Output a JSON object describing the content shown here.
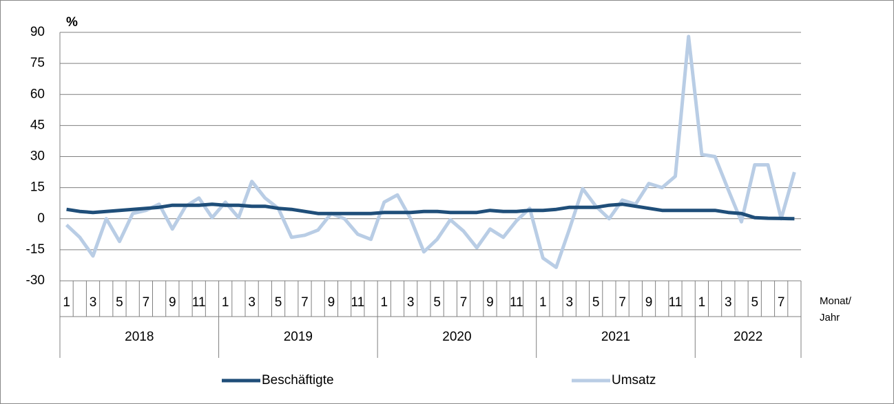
{
  "chart_data": {
    "type": "line",
    "y_label": "%",
    "x_label": [
      "Monat/",
      "Jahr"
    ],
    "categories": [
      "1",
      null,
      "3",
      null,
      "5",
      null,
      "7",
      null,
      "9",
      null,
      "11",
      null,
      "1",
      null,
      "3",
      null,
      "5",
      null,
      "7",
      null,
      "9",
      null,
      "11",
      null,
      "1",
      null,
      "3",
      null,
      "5",
      null,
      "7",
      null,
      "9",
      null,
      "11",
      null,
      "1",
      null,
      "3",
      null,
      "5",
      null,
      "7",
      null,
      "9",
      null,
      "11",
      null,
      "1",
      null,
      "3",
      null,
      "5",
      null,
      "7",
      null
    ],
    "years": [
      {
        "label": "2018",
        "months": 12
      },
      {
        "label": "2019",
        "months": 12
      },
      {
        "label": "2020",
        "months": 12
      },
      {
        "label": "2021",
        "months": 12
      },
      {
        "label": "2022",
        "months": 8
      }
    ],
    "series": [
      {
        "name": "Beschäftigte",
        "color": "#1f4e79",
        "width": 5,
        "values": [
          4.5,
          3.5,
          3,
          3.5,
          4,
          4.5,
          5,
          5.5,
          6.5,
          6.5,
          6.5,
          7,
          6.5,
          6.5,
          6,
          6,
          5,
          4.5,
          3.5,
          2.5,
          2.5,
          2.5,
          2.5,
          2.5,
          3,
          3,
          3,
          3.5,
          3.5,
          3,
          3,
          3,
          4,
          3.5,
          3.5,
          4,
          4,
          4.5,
          5.5,
          5.5,
          5.5,
          6.5,
          7,
          6,
          5,
          4,
          4,
          4,
          4,
          4,
          3,
          2.5,
          0.5,
          0.2,
          0.1,
          0
        ]
      },
      {
        "name": "Umsatz",
        "color": "#b9cde5",
        "width": 5,
        "values": [
          -3,
          -9,
          -18,
          0,
          -11,
          2.5,
          4,
          7,
          -5,
          6,
          10,
          0.5,
          8,
          0.5,
          18,
          10,
          5,
          -9,
          -8,
          -5.5,
          2.5,
          0,
          -7.5,
          -10,
          8,
          11.5,
          0,
          -16,
          -10,
          -0.5,
          -6,
          -14,
          -5,
          -9,
          -1,
          5,
          -19,
          -23.5,
          -5,
          14.5,
          6,
          0,
          9,
          7,
          17,
          15,
          20.5,
          88,
          31,
          30,
          14,
          -1.5,
          26,
          26,
          0,
          22.5
        ]
      }
    ],
    "ylim": [
      -30,
      90
    ],
    "yticks": [
      -30,
      -15,
      0,
      15,
      30,
      45,
      60,
      75,
      90
    ],
    "grid": true
  }
}
